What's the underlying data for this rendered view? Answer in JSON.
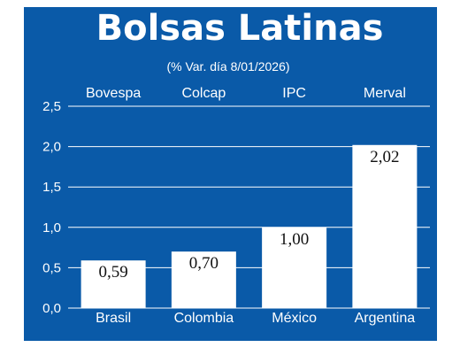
{
  "chart_data": {
    "type": "bar",
    "title": "Bolsas Latinas",
    "subtitle": "(% Var. día 8/01/2026)",
    "categories": [
      "Brasil",
      "Colombia",
      "México",
      "Argentina"
    ],
    "index_names": [
      "Bovespa",
      "Colcap",
      "IPC",
      "Merval"
    ],
    "values": [
      0.59,
      0.7,
      1.0,
      2.02
    ],
    "value_labels": [
      "0,59",
      "0,70",
      "1,00",
      "2,02"
    ],
    "ylim": [
      0,
      2.5
    ],
    "yticks": [
      0,
      0.5,
      1.0,
      1.5,
      2.0,
      2.5
    ],
    "ytick_labels": [
      "0,0",
      "0,5",
      "1,0",
      "1,5",
      "2,0",
      "2,5"
    ],
    "grid": true,
    "xlabel": "",
    "ylabel": ""
  },
  "colors": {
    "background": "#0a5aa8",
    "bar": "#ffffff",
    "grid": "#ffffff",
    "text": "#ffffff",
    "value_text": "#111111"
  }
}
